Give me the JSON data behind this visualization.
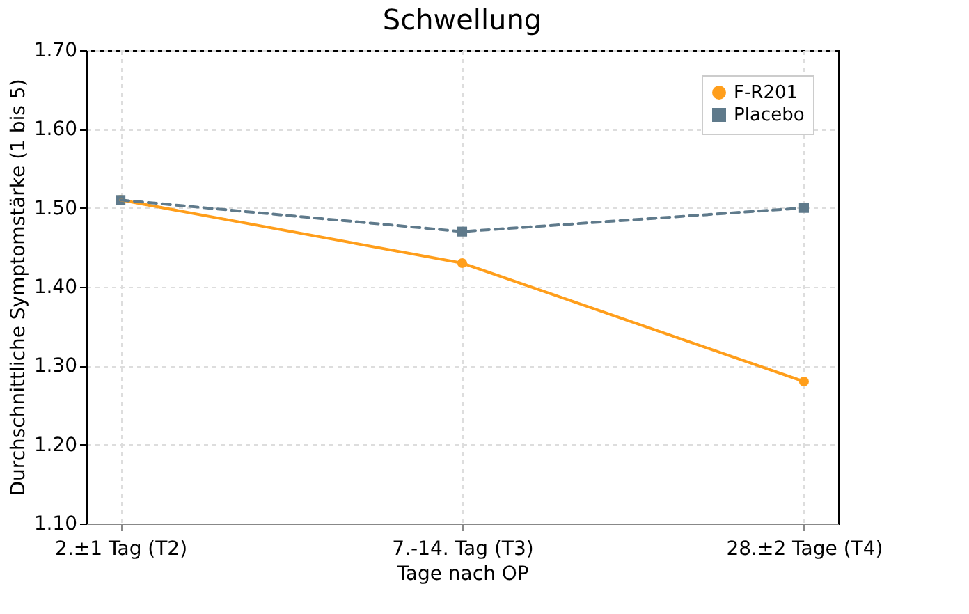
{
  "chart_data": {
    "type": "line",
    "title": "Schwellung",
    "xlabel": "Tage nach OP",
    "ylabel": "Durchschnittliche Symptomstärke (1 bis 5)",
    "categories": [
      "2.±1 Tag (T2)",
      "7.-14. Tag (T3)",
      "28.±2 Tage (T4)"
    ],
    "series": [
      {
        "name": "F-R201",
        "color": "#ff9e1b",
        "values": [
          1.51,
          1.43,
          1.28
        ],
        "marker": "circle",
        "line_style": "solid"
      },
      {
        "name": "Placebo",
        "color": "#5f7a8b",
        "values": [
          1.51,
          1.47,
          1.5
        ],
        "marker": "square",
        "line_style": "dashed"
      }
    ],
    "ylim": [
      1.1,
      1.7
    ],
    "yticks": [
      {
        "value": 1.1,
        "label": "1.10"
      },
      {
        "value": 1.2,
        "label": "1.20"
      },
      {
        "value": 1.3,
        "label": "1.30"
      },
      {
        "value": 1.4,
        "label": "1.40"
      },
      {
        "value": 1.5,
        "label": "1.50"
      },
      {
        "value": 1.6,
        "label": "1.60"
      },
      {
        "value": 1.7,
        "label": "1.70"
      }
    ],
    "grid": true,
    "legend": "top right"
  }
}
